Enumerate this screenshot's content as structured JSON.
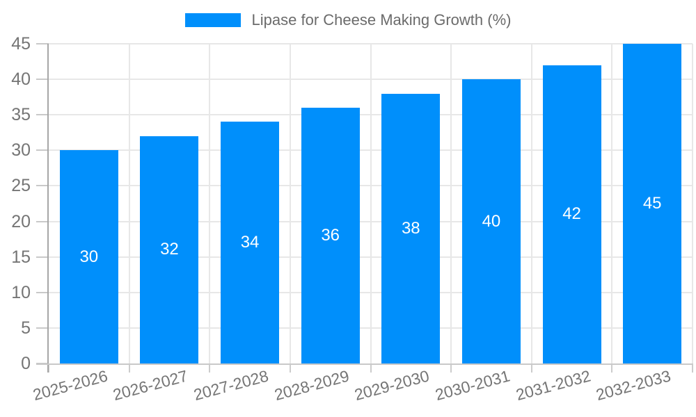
{
  "legend": {
    "label": "Lipase for Cheese Making Growth (%)"
  },
  "chart_data": {
    "type": "bar",
    "title": "Lipase for Cheese Making Growth (%)",
    "categories": [
      "2025-2026",
      "2026-2027",
      "2027-2028",
      "2028-2029",
      "2029-2030",
      "2030-2031",
      "2031-2032",
      "2032-2033"
    ],
    "values": [
      30,
      32,
      34,
      36,
      38,
      40,
      42,
      45
    ],
    "xlabel": "",
    "ylabel": "",
    "ylim": [
      0,
      45
    ],
    "yticks": [
      0,
      5,
      10,
      15,
      20,
      25,
      30,
      35,
      40,
      45
    ],
    "grid": true,
    "legend_position": "top-center",
    "value_labels_inside_bars": true,
    "colors": {
      "bar": "#008FFB",
      "bar_value_text": "#ffffff",
      "axis_text": "#757575",
      "legend_text": "#6b6b6b",
      "gridline": "#e7e7e7",
      "tick": "#cccccc",
      "axis_line": "#a6a6a6",
      "baseline": "#c9c9c9",
      "background": "#ffffff"
    }
  }
}
